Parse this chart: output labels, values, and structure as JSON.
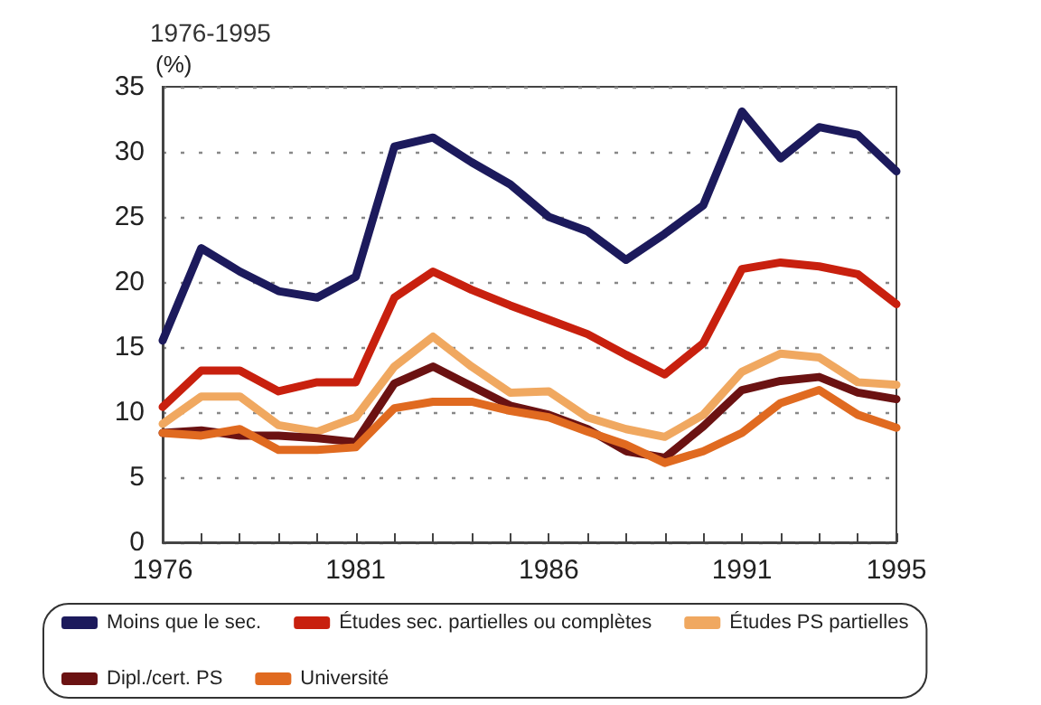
{
  "chart_data": {
    "type": "line",
    "title": "1976-1995",
    "ylabel": "(%)",
    "x": [
      1976,
      1977,
      1978,
      1979,
      1980,
      1981,
      1982,
      1983,
      1984,
      1985,
      1986,
      1987,
      1988,
      1989,
      1990,
      1991,
      1992,
      1993,
      1994,
      1995
    ],
    "series": [
      {
        "name": "Moins que le sec.",
        "color": "#1c1a5c",
        "values": [
          15.5,
          22.6,
          20.8,
          19.3,
          18.8,
          20.4,
          30.4,
          31.1,
          29.2,
          27.5,
          25.0,
          23.9,
          21.7,
          23.7,
          25.9,
          33.1,
          29.5,
          31.9,
          31.3,
          28.5
        ]
      },
      {
        "name": "Études sec. partielles ou complètes",
        "color": "#c8200e",
        "values": [
          10.4,
          13.2,
          13.2,
          11.6,
          12.3,
          12.3,
          18.8,
          20.8,
          19.4,
          18.2,
          17.1,
          16.0,
          14.4,
          12.9,
          15.3,
          21.0,
          21.5,
          21.2,
          20.6,
          18.3
        ]
      },
      {
        "name": "Études PS partielles",
        "color": "#f0a860",
        "values": [
          9.1,
          11.2,
          11.2,
          9.0,
          8.5,
          9.6,
          13.5,
          15.8,
          13.5,
          11.5,
          11.6,
          9.6,
          8.7,
          8.1,
          9.8,
          13.1,
          14.5,
          14.2,
          12.3,
          12.1
        ]
      },
      {
        "name": "Dipl./cert. PS",
        "color": "#6b1212",
        "values": [
          8.4,
          8.6,
          8.2,
          8.2,
          8.0,
          7.7,
          12.2,
          13.5,
          12.0,
          10.5,
          9.8,
          8.7,
          7.0,
          6.5,
          8.9,
          11.7,
          12.4,
          12.7,
          11.5,
          11.0
        ]
      },
      {
        "name": "Université",
        "color": "#e06a20",
        "values": [
          8.4,
          8.2,
          8.7,
          7.1,
          7.1,
          7.3,
          10.3,
          10.8,
          10.8,
          10.1,
          9.6,
          8.5,
          7.5,
          6.1,
          7.0,
          8.4,
          10.7,
          11.7,
          9.8,
          8.8
        ]
      }
    ],
    "xlim": [
      1976,
      1995
    ],
    "xticks": [
      1976,
      {
        "value": 1977,
        "label": null
      },
      {
        "value": 1978,
        "label": null
      },
      {
        "value": 1979,
        "label": null
      },
      {
        "value": 1980,
        "label": null
      },
      1981,
      {
        "value": 1982,
        "label": null
      },
      {
        "value": 1983,
        "label": null
      },
      {
        "value": 1984,
        "label": null
      },
      {
        "value": 1985,
        "label": null
      },
      1986,
      {
        "value": 1987,
        "label": null
      },
      {
        "value": 1988,
        "label": null
      },
      {
        "value": 1989,
        "label": null
      },
      {
        "value": 1990,
        "label": null
      },
      1991,
      {
        "value": 1992,
        "label": null
      },
      {
        "value": 1993,
        "label": null
      },
      {
        "value": 1994,
        "label": null
      },
      1995
    ],
    "ylim": [
      0,
      35
    ],
    "yticks": [
      0,
      5,
      10,
      15,
      20,
      25,
      30,
      35
    ],
    "grid": "y",
    "legend": "bottom",
    "marker": "none",
    "line_style": "solid"
  }
}
